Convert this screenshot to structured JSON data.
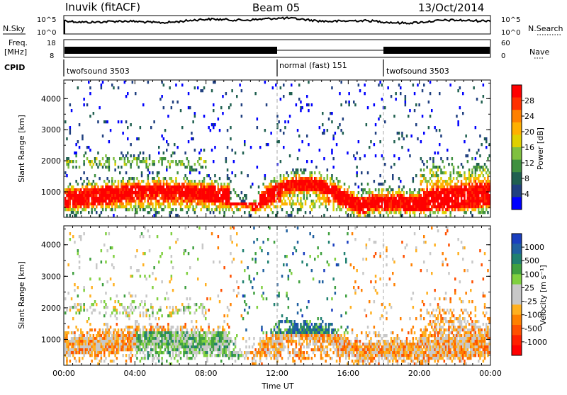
{
  "header": {
    "station": "Inuvik (fitACF)",
    "beam": "Beam 05",
    "date": "13/Oct/2014"
  },
  "summary_panels": {
    "nsky": {
      "label": "N.Sky",
      "ticks": [
        "10^5",
        "10^0"
      ]
    },
    "nsearch": {
      "label": "N.Search",
      "ticks": [
        "10^5",
        "10^0"
      ]
    },
    "freq": {
      "label_line1": "Freq.",
      "label_line2": "[MHz]",
      "ticks": [
        "18",
        "8"
      ]
    },
    "nave": {
      "label": "Nave",
      "ticks": [
        "60",
        "0"
      ]
    },
    "cpid": {
      "label": "CPID",
      "segments": [
        {
          "name": "twofsound 3503",
          "start_hour": 0,
          "end_hour": 12
        },
        {
          "name": "normal (fast) 151",
          "start_hour": 12,
          "end_hour": 18
        },
        {
          "name": "twofsound 3503",
          "start_hour": 18,
          "end_hour": 24
        }
      ]
    }
  },
  "colorbars": {
    "power": {
      "title": "Power [dB]",
      "ticks": [
        "28",
        "24",
        "20",
        "16",
        "12",
        "8",
        "4"
      ],
      "colors": [
        "#ff0000",
        "#ff3000",
        "#ff8000",
        "#ffb000",
        "#e0d000",
        "#80c040",
        "#409040",
        "#206050",
        "#204080",
        "#0000ff"
      ]
    },
    "velocity": {
      "title": "Velocity [m s⁻¹]",
      "ticks": [
        "1000",
        "500",
        "100",
        "25",
        "-25",
        "-100",
        "-500",
        "-1000"
      ],
      "colors": [
        "#1a3fbf",
        "#2060a0",
        "#208070",
        "#40a040",
        "#80d040",
        "#c8c8c8",
        "#c8c8c8",
        "#ffb020",
        "#ff8000",
        "#ff5000",
        "#ff2000",
        "#ff0000"
      ]
    }
  },
  "chart_data": [
    {
      "type": "heatmap",
      "name": "power",
      "ylabel": "Slant Range [km]",
      "xlabel": "",
      "ylim": [
        180,
        4600
      ],
      "xlim": [
        0,
        24
      ],
      "yticks": [
        "1000",
        "2000",
        "3000",
        "4000"
      ],
      "xticks": [
        "00:00",
        "04:00",
        "08:00",
        "12:00",
        "16:00",
        "20:00",
        "00:00"
      ],
      "grid": false
    },
    {
      "type": "heatmap",
      "name": "velocity",
      "ylabel": "Slant Range [km]",
      "xlabel": "Time UT",
      "ylim": [
        180,
        4600
      ],
      "xlim": [
        0,
        24
      ],
      "yticks": [
        "1000",
        "2000",
        "3000",
        "4000"
      ],
      "xticks": [
        "00:00",
        "04:00",
        "08:00",
        "12:00",
        "16:00",
        "20:00",
        "00:00"
      ],
      "grid": false
    }
  ]
}
